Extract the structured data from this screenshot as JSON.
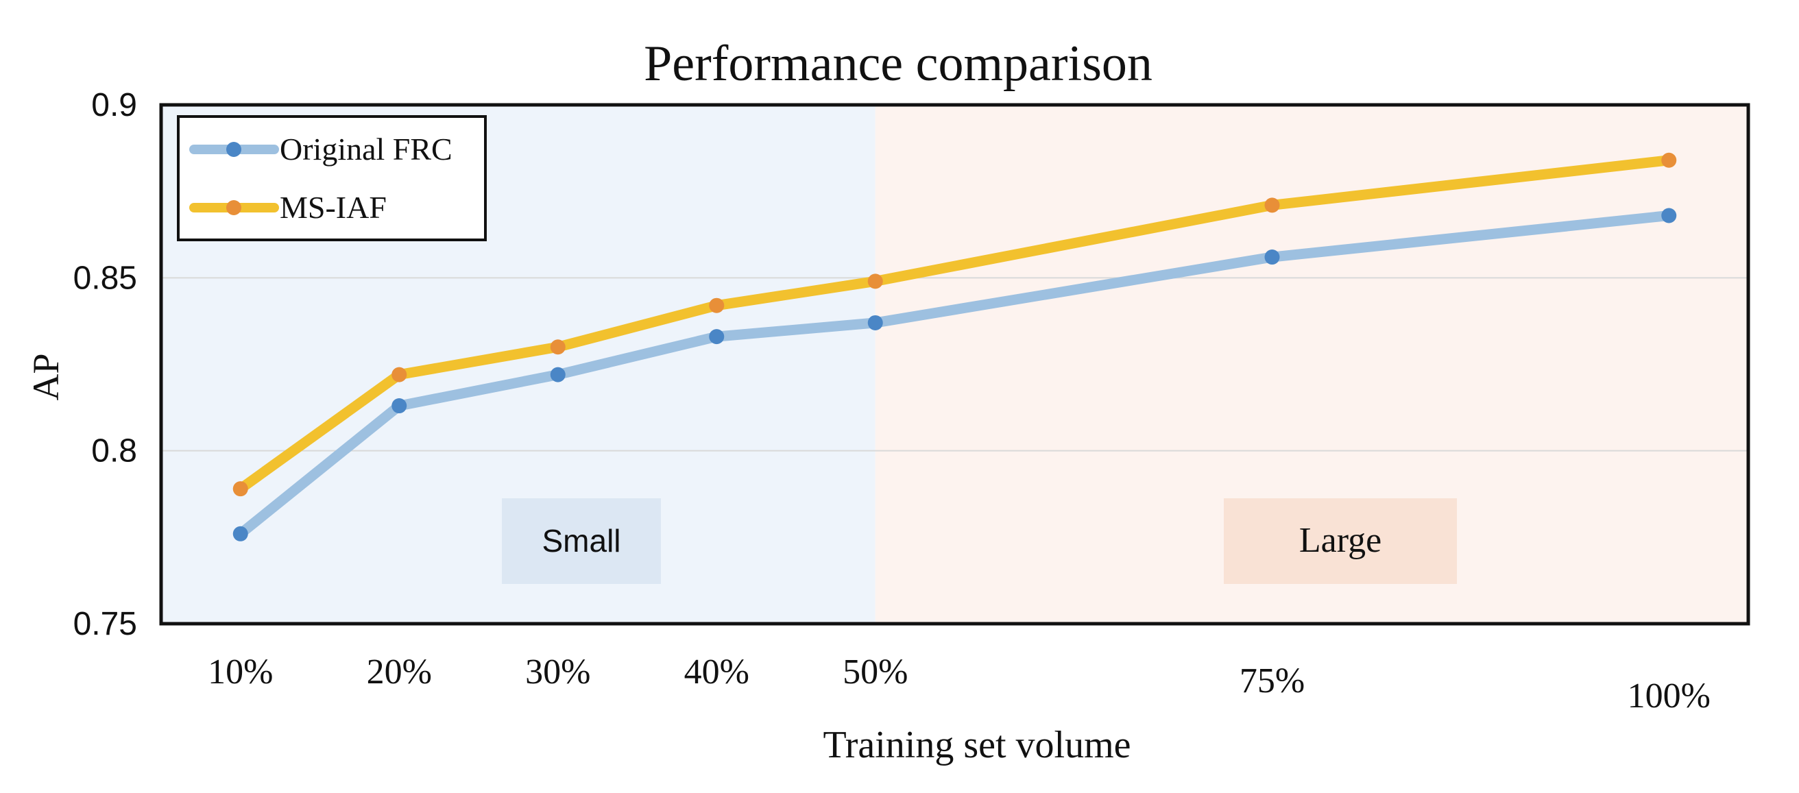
{
  "chart_data": {
    "type": "line",
    "title": "Performance comparison",
    "xlabel": "Training set volume",
    "ylabel": "AP",
    "categories": [
      "10%",
      "20%",
      "30%",
      "40%",
      "50%",
      "75%",
      "100%"
    ],
    "x": [
      10,
      20,
      30,
      40,
      50,
      75,
      100
    ],
    "ylim": [
      0.75,
      0.9
    ],
    "yticks": [
      0.75,
      0.8,
      0.85,
      0.9
    ],
    "ytick_labels": [
      "0.75",
      "0.8",
      "0.85",
      "0.9"
    ],
    "grid": true,
    "legend_position": "top-left",
    "series": [
      {
        "name": "Original FRC",
        "values": [
          0.776,
          0.813,
          0.822,
          0.833,
          0.837,
          0.856,
          0.868
        ],
        "color": "#9dc0e0",
        "marker_color": "#4a86c6"
      },
      {
        "name": "MS-IAF",
        "values": [
          0.789,
          0.822,
          0.83,
          0.842,
          0.849,
          0.871,
          0.884
        ],
        "color": "#f2c12e",
        "marker_color": "#e88f38"
      }
    ],
    "regions": [
      {
        "label": "Small",
        "from": 5,
        "to": 50,
        "fill": "#eef4fb",
        "label_box_color": "#dce7f3"
      },
      {
        "label": "Large",
        "from": 50,
        "to": 105,
        "fill": "#fdf3ef",
        "label_box_color": "#f9e2d5"
      }
    ]
  }
}
